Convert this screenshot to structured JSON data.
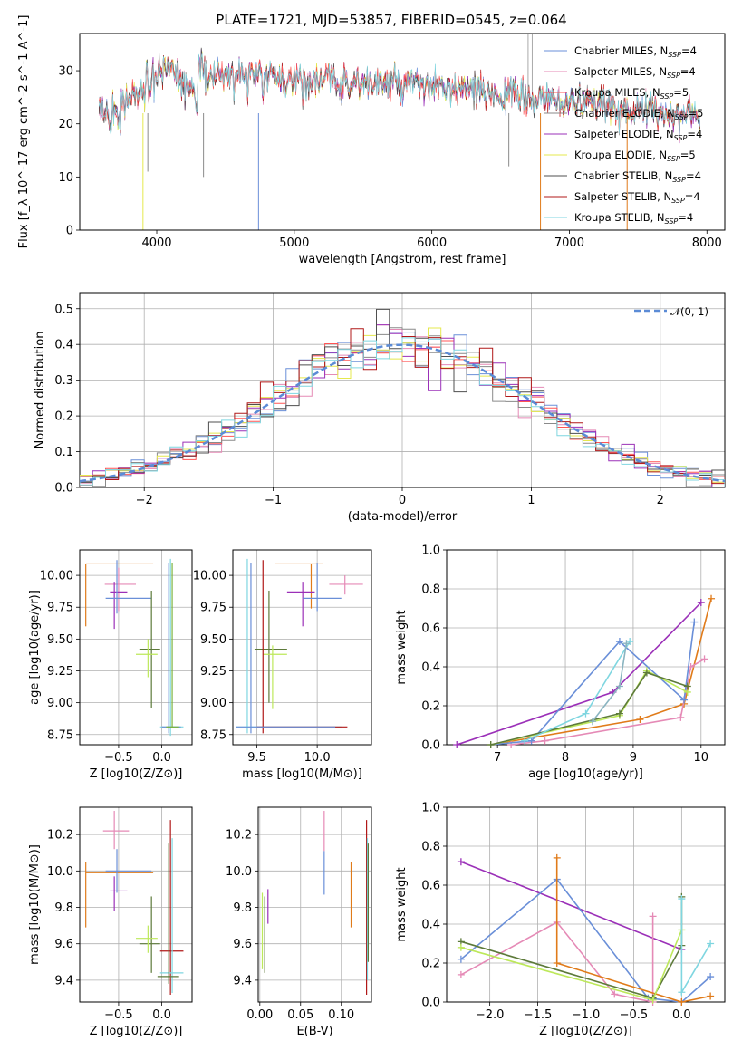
{
  "title": "PLATE=1721, MJD=53857, FIBERID=0545, z=0.064",
  "colors": {
    "Chabrier MILES": "#6a8fd8",
    "Salpeter MILES": "#e58ab6",
    "Kroupa MILES": "#ff5555",
    "Chabrier ELODIE": "#8a8a8a",
    "Salpeter ELODIE": "#9b30b8",
    "Kroupa ELODIE": "#e5e84e",
    "Chabrier STELIB": "#4f4f4f",
    "Salpeter STELIB": "#b01818",
    "Kroupa STELIB": "#7fd6e0",
    "green": "#7bb33e",
    "orange": "#e07b1a",
    "lime": "#bde85a",
    "olive": "#5d7a3a"
  },
  "chart_data": [
    {
      "type": "line",
      "panel": "spectrum",
      "title": "PLATE=1721, MJD=53857, FIBERID=0545, z=0.064",
      "xlabel": "wavelength [Angstrom, rest frame]",
      "ylabel": "Flux [f_λ 10^-17 erg cm^-2 s^-1 A^-1]",
      "xlim": [
        3440,
        8130
      ],
      "ylim": [
        0,
        37
      ],
      "xticks": [
        "4000",
        "5000",
        "6000",
        "7000",
        "8000"
      ],
      "yticks": [
        "0",
        "10",
        "20",
        "30"
      ],
      "legend": [
        {
          "name": "Chabrier MILES",
          "nssp": "4"
        },
        {
          "name": "Salpeter MILES",
          "nssp": "4"
        },
        {
          "name": "Kroupa MILES",
          "nssp": "5"
        },
        {
          "name": "Chabrier ELODIE",
          "nssp": "5"
        },
        {
          "name": "Salpeter ELODIE",
          "nssp": "4"
        },
        {
          "name": "Kroupa ELODIE",
          "nssp": "5"
        },
        {
          "name": "Chabrier STELIB",
          "nssp": "4"
        },
        {
          "name": "Salpeter STELIB",
          "nssp": "4"
        },
        {
          "name": "Kroupa STELIB",
          "nssp": "4"
        }
      ],
      "legend_position": "right",
      "grid": false
    },
    {
      "type": "step",
      "panel": "residuals",
      "xlabel": "(data-model)/error",
      "ylabel": "Normed distribution",
      "xlim": [
        -2.5,
        2.5
      ],
      "ylim": [
        0,
        0.545
      ],
      "xticks": [
        "−2",
        "−1",
        "0",
        "1",
        "2"
      ],
      "yticks": [
        "0.0",
        "0.1",
        "0.2",
        "0.3",
        "0.4",
        "0.5"
      ],
      "legend": [
        "𝒩(0, 1)"
      ],
      "legend_position": "top-right",
      "grid": true
    },
    {
      "type": "errorbar",
      "panel": "Z-age",
      "xlabel": "Z [log10(Z/Z⊙)]",
      "ylabel": "age  [log10(age/yr)]",
      "xlim": [
        -0.95,
        0.35
      ],
      "ylim": [
        8.67,
        10.2
      ],
      "xticks": [
        "−0.5",
        "0.0"
      ],
      "yticks": [
        "8.75",
        "9.00",
        "9.25",
        "9.50",
        "9.75",
        "10.00"
      ],
      "grid": true
    },
    {
      "type": "errorbar",
      "panel": "mass-age",
      "xlabel": "mass [log10(M/M⊙)]",
      "ylabel": "",
      "xlim": [
        9.3,
        10.45
      ],
      "ylim": [
        8.67,
        10.2
      ],
      "xticks": [
        "9.5",
        "10.0"
      ],
      "yticks": [
        "8.75",
        "9.00",
        "9.25",
        "9.50",
        "9.75",
        "10.00"
      ],
      "grid": true
    },
    {
      "type": "line",
      "panel": "age-massweight",
      "xlabel": "age  [log10(age/yr)]",
      "ylabel": "mass weight",
      "xlim": [
        6.25,
        10.35
      ],
      "ylim": [
        0,
        1
      ],
      "xticks": [
        "7",
        "8",
        "9",
        "10"
      ],
      "yticks": [
        "0.0",
        "0.2",
        "0.4",
        "0.6",
        "0.8",
        "1.0"
      ],
      "grid": true
    },
    {
      "type": "errorbar",
      "panel": "Z-mass",
      "xlabel": "Z [log10(Z/Z⊙)]",
      "ylabel": "mass [log10(M/M⊙)]",
      "xlim": [
        -0.95,
        0.35
      ],
      "ylim": [
        9.28,
        10.35
      ],
      "xticks": [
        "−0.5",
        "0.0"
      ],
      "yticks": [
        "9.4",
        "9.6",
        "9.8",
        "10.0",
        "10.2"
      ],
      "grid": true
    },
    {
      "type": "errorbar",
      "panel": "EBV-mass",
      "xlabel": "E(B-V)",
      "ylabel": "",
      "xlim": [
        -0.002,
        0.137
      ],
      "ylim": [
        9.28,
        10.35
      ],
      "xticks": [
        "0.00",
        "0.05",
        "0.10"
      ],
      "yticks": [
        "9.4",
        "9.6",
        "9.8",
        "10.0",
        "10.2"
      ],
      "grid": true
    },
    {
      "type": "line",
      "panel": "Z-massweight",
      "xlabel": "Z [log10(Z/Z⊙)]",
      "ylabel": "mass weight",
      "xlim": [
        -2.45,
        0.45
      ],
      "ylim": [
        0,
        1
      ],
      "xticks": [
        "−2.0",
        "−1.5",
        "−1.0",
        "−0.5",
        "0.0"
      ],
      "yticks": [
        "0.0",
        "0.2",
        "0.4",
        "0.6",
        "0.8",
        "1.0"
      ],
      "grid": true
    }
  ]
}
